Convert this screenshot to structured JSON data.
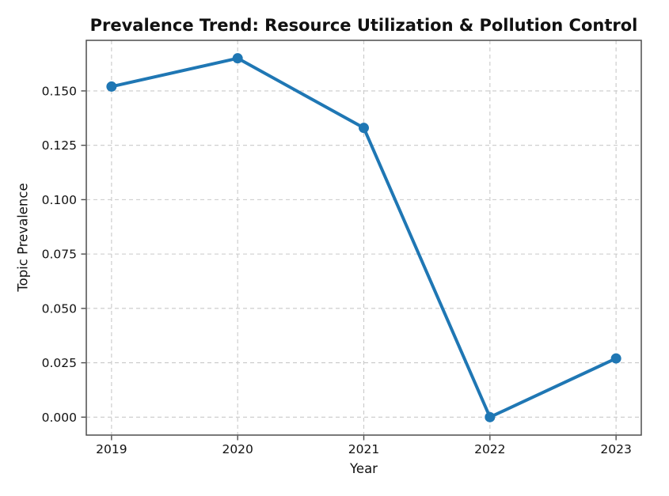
{
  "figure": {
    "background": "#ffffff"
  },
  "chart_data": {
    "type": "line",
    "title": "Prevalence Trend: Resource Utilization & Pollution Control",
    "xlabel": "Year",
    "ylabel": "Topic Prevalence",
    "x": [
      2019,
      2020,
      2021,
      2022,
      2023
    ],
    "series": [
      {
        "name": "Topic Prevalence",
        "values": [
          0.152,
          0.165,
          0.133,
          0.0,
          0.027
        ]
      }
    ],
    "x_ticks": [
      2019,
      2020,
      2021,
      2022,
      2023
    ],
    "x_tick_labels": [
      "2019",
      "2020",
      "2021",
      "2022",
      "2023"
    ],
    "y_ticks": [
      0.0,
      0.025,
      0.05,
      0.075,
      0.1,
      0.125,
      0.15
    ],
    "y_tick_labels": [
      "0.000",
      "0.025",
      "0.050",
      "0.075",
      "0.100",
      "0.125",
      "0.150"
    ],
    "xlim": [
      2018.8,
      2023.2
    ],
    "ylim": [
      -0.00825,
      0.17325
    ],
    "grid": true,
    "grid_linestyle": "dashed",
    "legend": "none",
    "marker": "circle",
    "colors": {
      "line": "#1f77b4",
      "marker": "#1f77b4",
      "grid": "#c9c9c9",
      "spine": "#4d4d4d",
      "text": "#111111"
    }
  }
}
